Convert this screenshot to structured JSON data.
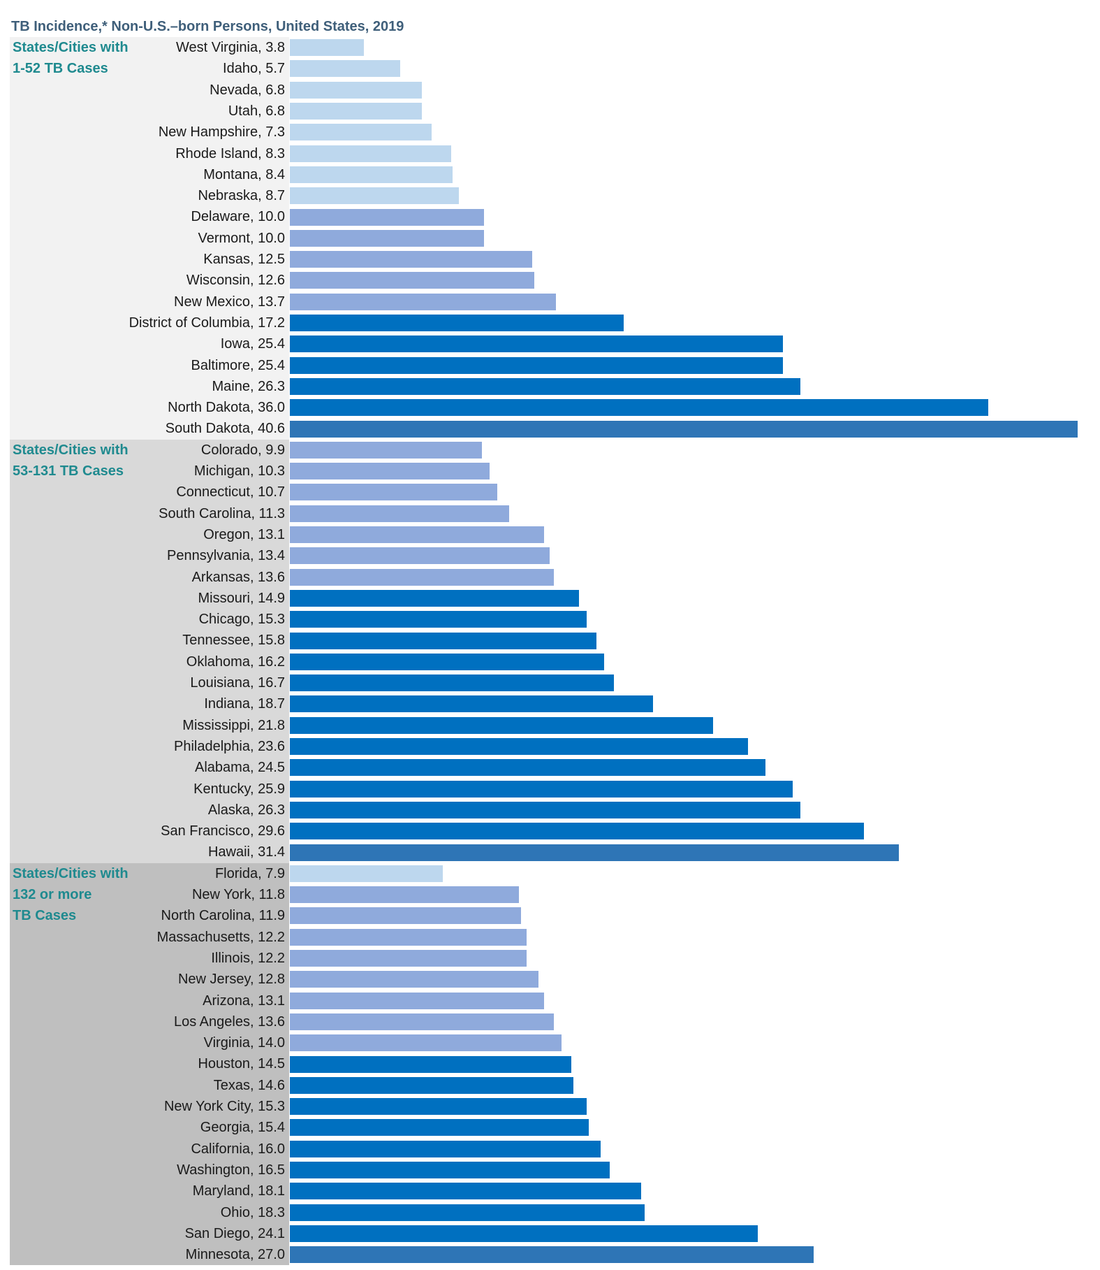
{
  "chart_data": {
    "type": "bar",
    "orientation": "horizontal",
    "title": "TB Incidence,* Non-U.S.–born Persons, United States, 2019",
    "xlim": [
      0,
      40.6
    ],
    "colors": {
      "light": "#bdd7ee",
      "medium": "#8faadc",
      "dark": "#0070c0",
      "max": "#2e75b6",
      "group_bg": [
        "#f2f2f2",
        "#d9d9d9",
        "#bfbfbf"
      ],
      "label": "#1f8a8f",
      "title": "#3f5f7a"
    },
    "groups": [
      {
        "label_lines": [
          "States/Cities with",
          "1-52 TB Cases"
        ],
        "items": [
          {
            "label": "West Virginia, 3.8",
            "value": 3.8,
            "shade": "light"
          },
          {
            "label": "Idaho, 5.7",
            "value": 5.7,
            "shade": "light"
          },
          {
            "label": "Nevada, 6.8",
            "value": 6.8,
            "shade": "light"
          },
          {
            "label": "Utah, 6.8",
            "value": 6.8,
            "shade": "light"
          },
          {
            "label": "New Hampshire, 7.3",
            "value": 7.3,
            "shade": "light"
          },
          {
            "label": "Rhode Island, 8.3",
            "value": 8.3,
            "shade": "light"
          },
          {
            "label": "Montana, 8.4",
            "value": 8.4,
            "shade": "light"
          },
          {
            "label": "Nebraska, 8.7",
            "value": 8.7,
            "shade": "light"
          },
          {
            "label": "Delaware, 10.0",
            "value": 10.0,
            "shade": "medium"
          },
          {
            "label": "Vermont, 10.0",
            "value": 10.0,
            "shade": "medium"
          },
          {
            "label": "Kansas, 12.5",
            "value": 12.5,
            "shade": "medium"
          },
          {
            "label": "Wisconsin, 12.6",
            "value": 12.6,
            "shade": "medium"
          },
          {
            "label": "New Mexico, 13.7",
            "value": 13.7,
            "shade": "medium"
          },
          {
            "label": "District of Columbia, 17.2",
            "value": 17.2,
            "shade": "dark"
          },
          {
            "label": "Iowa, 25.4",
            "value": 25.4,
            "shade": "dark"
          },
          {
            "label": "Baltimore, 25.4",
            "value": 25.4,
            "shade": "dark"
          },
          {
            "label": "Maine, 26.3",
            "value": 26.3,
            "shade": "dark"
          },
          {
            "label": "North Dakota, 36.0",
            "value": 36.0,
            "shade": "dark"
          },
          {
            "label": "South Dakota, 40.6",
            "value": 40.6,
            "shade": "max"
          }
        ]
      },
      {
        "label_lines": [
          "States/Cities with",
          "53-131 TB Cases"
        ],
        "items": [
          {
            "label": "Colorado, 9.9",
            "value": 9.9,
            "shade": "medium"
          },
          {
            "label": "Michigan, 10.3",
            "value": 10.3,
            "shade": "medium"
          },
          {
            "label": "Connecticut, 10.7",
            "value": 10.7,
            "shade": "medium"
          },
          {
            "label": "South Carolina, 11.3",
            "value": 11.3,
            "shade": "medium"
          },
          {
            "label": "Oregon, 13.1",
            "value": 13.1,
            "shade": "medium"
          },
          {
            "label": "Pennsylvania, 13.4",
            "value": 13.4,
            "shade": "medium"
          },
          {
            "label": "Arkansas, 13.6",
            "value": 13.6,
            "shade": "medium"
          },
          {
            "label": "Missouri, 14.9",
            "value": 14.9,
            "shade": "dark"
          },
          {
            "label": "Chicago, 15.3",
            "value": 15.3,
            "shade": "dark"
          },
          {
            "label": "Tennessee, 15.8",
            "value": 15.8,
            "shade": "dark"
          },
          {
            "label": "Oklahoma, 16.2",
            "value": 16.2,
            "shade": "dark"
          },
          {
            "label": "Louisiana, 16.7",
            "value": 16.7,
            "shade": "dark"
          },
          {
            "label": "Indiana, 18.7",
            "value": 18.7,
            "shade": "dark"
          },
          {
            "label": "Mississippi, 21.8",
            "value": 21.8,
            "shade": "dark"
          },
          {
            "label": "Philadelphia, 23.6",
            "value": 23.6,
            "shade": "dark"
          },
          {
            "label": "Alabama, 24.5",
            "value": 24.5,
            "shade": "dark"
          },
          {
            "label": "Kentucky, 25.9",
            "value": 25.9,
            "shade": "dark"
          },
          {
            "label": "Alaska, 26.3",
            "value": 26.3,
            "shade": "dark"
          },
          {
            "label": "San Francisco, 29.6",
            "value": 29.6,
            "shade": "dark"
          },
          {
            "label": "Hawaii, 31.4",
            "value": 31.4,
            "shade": "max"
          }
        ]
      },
      {
        "label_lines": [
          "States/Cities with",
          "132 or more",
          "TB Cases"
        ],
        "items": [
          {
            "label": "Florida, 7.9",
            "value": 7.9,
            "shade": "light"
          },
          {
            "label": "New York, 11.8",
            "value": 11.8,
            "shade": "medium"
          },
          {
            "label": "North Carolina, 11.9",
            "value": 11.9,
            "shade": "medium"
          },
          {
            "label": "Massachusetts, 12.2",
            "value": 12.2,
            "shade": "medium"
          },
          {
            "label": "Illinois, 12.2",
            "value": 12.2,
            "shade": "medium"
          },
          {
            "label": "New Jersey, 12.8",
            "value": 12.8,
            "shade": "medium"
          },
          {
            "label": "Arizona, 13.1",
            "value": 13.1,
            "shade": "medium"
          },
          {
            "label": "Los Angeles, 13.6",
            "value": 13.6,
            "shade": "medium"
          },
          {
            "label": "Virginia, 14.0",
            "value": 14.0,
            "shade": "medium"
          },
          {
            "label": "Houston, 14.5",
            "value": 14.5,
            "shade": "dark"
          },
          {
            "label": "Texas, 14.6",
            "value": 14.6,
            "shade": "dark"
          },
          {
            "label": "New York City, 15.3",
            "value": 15.3,
            "shade": "dark"
          },
          {
            "label": "Georgia, 15.4",
            "value": 15.4,
            "shade": "dark"
          },
          {
            "label": "California, 16.0",
            "value": 16.0,
            "shade": "dark"
          },
          {
            "label": "Washington, 16.5",
            "value": 16.5,
            "shade": "dark"
          },
          {
            "label": "Maryland, 18.1",
            "value": 18.1,
            "shade": "dark"
          },
          {
            "label": "Ohio, 18.3",
            "value": 18.3,
            "shade": "dark"
          },
          {
            "label": "San Diego, 24.1",
            "value": 24.1,
            "shade": "dark"
          },
          {
            "label": "Minnesota, 27.0",
            "value": 27.0,
            "shade": "max"
          }
        ]
      }
    ]
  }
}
